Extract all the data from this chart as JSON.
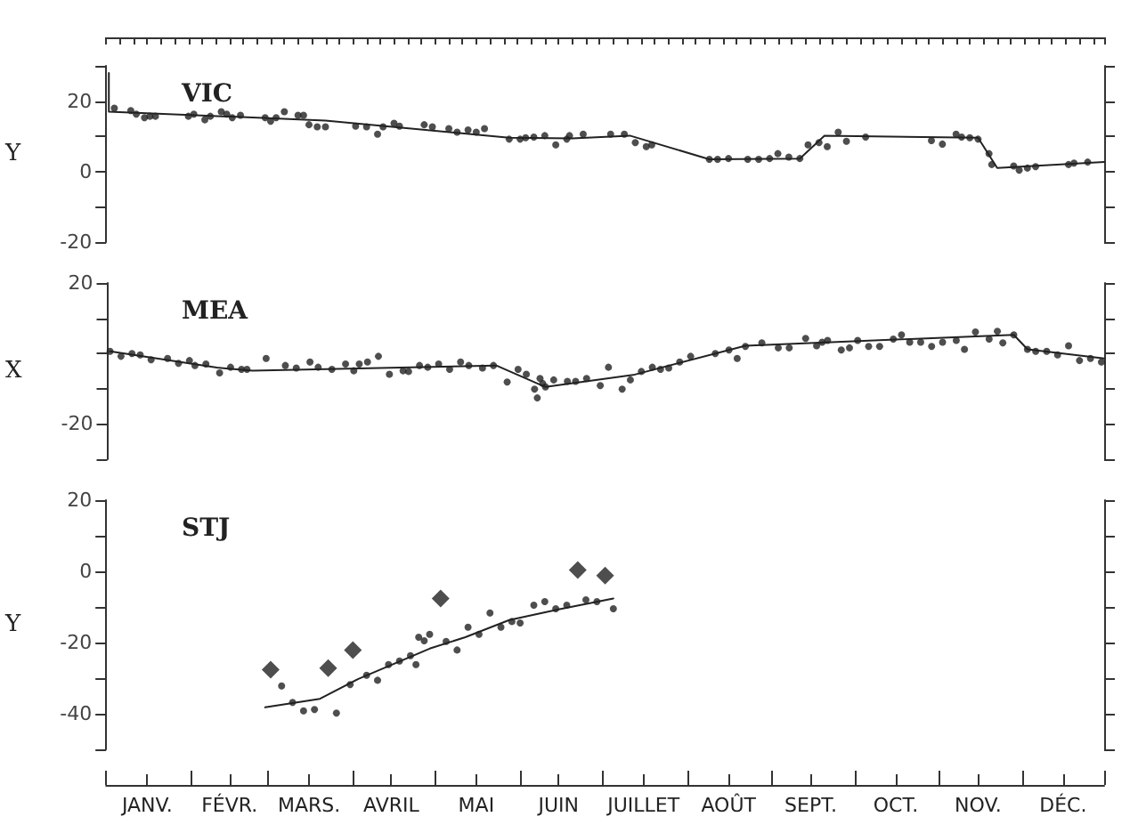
{
  "chart_data": [
    {
      "type": "scatter",
      "title": "VIC",
      "ylabel": "Y",
      "xlim": [
        "--01-01",
        "--12-31"
      ],
      "ylim": [
        -20,
        30
      ],
      "yticks": [
        -20,
        {
          "value": -10,
          "label": null
        },
        0,
        {
          "value": 10,
          "label": null
        },
        20,
        {
          "value": 30,
          "label": null
        }
      ],
      "tick_labels": "y",
      "series": [
        {
          "marker": "circle",
          "color": "#222222",
          "x": [
            "--01-04",
            "--01-10",
            "--01-12",
            "--01-15",
            "--01-17",
            "--01-19",
            "--01-31",
            "--02-02",
            "--02-06",
            "--02-08",
            "--02-12",
            "--02-14",
            "--02-16",
            "--02-19",
            "--02-28",
            "--03-02",
            "--03-04",
            "--03-07",
            "--03-12",
            "--03-14",
            "--03-16",
            "--03-19",
            "--03-22",
            "--04-02",
            "--04-06",
            "--04-10",
            "--04-12",
            "--04-16",
            "--04-18",
            "--04-27",
            "--04-30",
            "--05-06",
            "--05-09",
            "--05-13",
            "--05-16",
            "--05-19",
            "--05-28",
            "--06-01",
            "--06-03",
            "--06-06",
            "--06-10",
            "--06-14",
            "--06-18",
            "--06-19",
            "--06-24",
            "--07-04",
            "--07-09",
            "--07-13",
            "--07-17",
            "--07-19",
            "--08-09",
            "--08-12",
            "--08-16",
            "--08-23",
            "--08-27",
            "--08-31",
            "--09-03",
            "--09-07",
            "--09-11",
            "--09-14",
            "--09-18",
            "--09-21",
            "--09-25",
            "--09-28",
            "--10-05",
            "--10-29",
            "--11-02",
            "--11-07",
            "--11-09",
            "--11-12",
            "--11-15",
            "--11-19",
            "--11-20",
            "--11-28",
            "--11-30",
            "--12-03",
            "--12-06",
            "--12-18",
            "--12-20",
            "--12-25"
          ],
          "values": [
            18,
            17.3,
            16.3,
            15.3,
            15.7,
            15.7,
            15.7,
            16.3,
            14.7,
            15.7,
            17,
            16.3,
            15.3,
            16,
            15.3,
            14.3,
            15.3,
            17,
            16,
            16,
            13.3,
            12.7,
            12.7,
            12.9,
            12.7,
            10.6,
            12.7,
            13.7,
            12.9,
            13.3,
            12.7,
            12.2,
            11.2,
            11.8,
            11.2,
            12.2,
            9.2,
            9.2,
            9.6,
            9.8,
            10.2,
            7.6,
            9.2,
            10.2,
            10.6,
            10.6,
            10.6,
            8.2,
            7.1,
            7.6,
            3.5,
            3.5,
            3.7,
            3.5,
            3.5,
            3.7,
            5.1,
            4.1,
            3.7,
            7.6,
            8.2,
            7.1,
            11.2,
            8.6,
            9.8,
            8.8,
            7.8,
            10.6,
            9.8,
            9.6,
            9.2,
            5.1,
            2,
            1.6,
            0.4,
            1,
            1.4,
            2,
            2.4,
            2.7
          ]
        },
        {
          "type": "line",
          "marker": "none",
          "color": "#222222",
          "x": [
            "--01-02",
            "--01-02",
            "--03-22",
            "--05-28",
            "--06-20",
            "--07-11",
            "--08-09",
            "--09-11",
            "--09-20",
            "--11-15",
            "--11-22",
            "--12-31"
          ],
          "values": [
            28,
            17,
            14.5,
            9.6,
            9.4,
            10.2,
            3.5,
            3.7,
            10.2,
            9.6,
            1,
            2.7
          ]
        }
      ]
    },
    {
      "type": "scatter",
      "title": "MEA",
      "ylabel": "X",
      "xlim": [
        "--01-01",
        "--12-31"
      ],
      "ylim": [
        -30,
        20
      ],
      "yticks": [
        {
          "value": -30,
          "label": null
        },
        -20,
        {
          "value": -10,
          "label": null
        },
        {
          "value": 0,
          "label": null
        },
        {
          "value": 10,
          "label": null
        },
        20
      ],
      "tick_labels": "y",
      "series": [
        {
          "marker": "circle",
          "color": "#222222",
          "x": [
            "--01-02",
            "--01-06",
            "--01-10",
            "--01-13",
            "--01-17",
            "--01-23",
            "--01-27",
            "--01-31",
            "--02-02",
            "--02-06",
            "--02-11",
            "--02-15",
            "--02-19",
            "--02-21",
            "--02-28",
            "--03-07",
            "--03-11",
            "--03-16",
            "--03-19",
            "--03-24",
            "--03-29",
            "--04-01",
            "--04-03",
            "--04-06",
            "--04-10",
            "--04-14",
            "--04-19",
            "--04-21",
            "--04-25",
            "--04-28",
            "--05-02",
            "--05-06",
            "--05-10",
            "--05-13",
            "--05-18",
            "--05-22",
            "--05-27",
            "--05-31",
            "--06-03",
            "--06-06",
            "--06-07",
            "--06-08",
            "--06-09",
            "--06-10",
            "--06-13",
            "--06-18",
            "--06-21",
            "--06-25",
            "--06-30",
            "--07-03",
            "--07-08",
            "--07-11",
            "--07-15",
            "--07-19",
            "--07-22",
            "--07-25",
            "--07-29",
            "--08-02",
            "--08-11",
            "--08-16",
            "--08-19",
            "--08-22",
            "--08-28",
            "--09-03",
            "--09-07",
            "--09-13",
            "--09-17",
            "--09-19",
            "--09-21",
            "--09-26",
            "--09-29",
            "--10-02",
            "--10-06",
            "--10-10",
            "--10-15",
            "--10-18",
            "--10-21",
            "--10-25",
            "--10-29",
            "--11-02",
            "--11-07",
            "--11-10",
            "--11-14",
            "--11-19",
            "--11-22",
            "--11-24",
            "--11-28",
            "--12-03",
            "--12-06",
            "--12-10",
            "--12-14",
            "--12-18",
            "--12-22",
            "--12-26",
            "--12-30"
          ],
          "values": [
            0.6,
            -0.8,
            0,
            -0.4,
            -1.8,
            -1.4,
            -2.8,
            -2,
            -3.4,
            -3,
            -5.5,
            -3.9,
            -4.5,
            -4.5,
            -1.4,
            -3.4,
            -4.1,
            -2.4,
            -3.9,
            -4.5,
            -3,
            -4.9,
            -3,
            -2.4,
            -0.8,
            -5.9,
            -4.9,
            -5.1,
            -3.4,
            -3.9,
            -3,
            -4.5,
            -2.4,
            -3.4,
            -4.1,
            -3.4,
            -8.1,
            -4.5,
            -5.9,
            -10.1,
            -12.6,
            -7.1,
            -8.5,
            -9.5,
            -7.5,
            -7.9,
            -7.9,
            -7.1,
            -9.1,
            -3.9,
            -10.1,
            -7.5,
            -5.1,
            -3.9,
            -4.5,
            -4.1,
            -2.4,
            -0.8,
            0,
            1,
            -1.4,
            2,
            3,
            1.6,
            1.6,
            4.3,
            2.2,
            3.2,
            3.7,
            1,
            1.6,
            3.7,
            2,
            2,
            4.1,
            5.3,
            3.2,
            3.2,
            2,
            3.2,
            3.7,
            1.2,
            6.1,
            4.1,
            6.3,
            3,
            5.3,
            1.2,
            0.6,
            0.6,
            -0.4,
            2.2,
            -2,
            -1.4,
            -2.4
          ]
        },
        {
          "type": "line",
          "marker": "none",
          "color": "#222222",
          "x": [
            "--01-02",
            "--02-10",
            "--02-23",
            "--05-23",
            "--06-10",
            "--07-12",
            "--08-22",
            "--11-28",
            "--12-03",
            "--12-31"
          ],
          "values": [
            0.6,
            -4,
            -4.9,
            -3.4,
            -9.5,
            -6.1,
            2.2,
            5.3,
            1.2,
            -1.4
          ]
        }
      ]
    },
    {
      "type": "scatter",
      "title": "STJ",
      "ylabel": "Y",
      "xlim": [
        "--01-01",
        "--12-31"
      ],
      "xticks": [
        {
          "value": "--01-16",
          "label": "JANV."
        },
        {
          "value": "--02-15",
          "label": "FÉVR."
        },
        {
          "value": "--03-16",
          "label": "MARS."
        },
        {
          "value": "--04-15",
          "label": "AVRIL"
        },
        {
          "value": "--05-16",
          "label": "MAI"
        },
        {
          "value": "--06-15",
          "label": "JUIN"
        },
        {
          "value": "--07-16",
          "label": "JUILLET"
        },
        {
          "value": "--08-16",
          "label": "AOÛT"
        },
        {
          "value": "--09-15",
          "label": "SEPT."
        },
        {
          "value": "--10-16",
          "label": "OCT."
        },
        {
          "value": "--11-15",
          "label": "NOV."
        },
        {
          "value": "--12-16",
          "label": "DÉC."
        }
      ],
      "ylim": [
        -50,
        20
      ],
      "yticks": [
        {
          "value": -50,
          "label": null
        },
        -40,
        {
          "value": -30,
          "label": null
        },
        -20,
        {
          "value": -10,
          "label": null
        },
        0,
        {
          "value": 10,
          "label": null
        },
        20
      ],
      "series": [
        {
          "marker": "circle",
          "color": "#222222",
          "x": [
            "--03-06",
            "--03-10",
            "--03-14",
            "--03-18",
            "--03-26",
            "--03-31",
            "--04-06",
            "--04-10",
            "--04-14",
            "--04-18",
            "--04-22",
            "--04-24",
            "--04-25",
            "--04-27",
            "--04-29",
            "--05-05",
            "--05-09",
            "--05-13",
            "--05-17",
            "--05-21",
            "--05-25",
            "--05-29",
            "--06-01",
            "--06-06",
            "--06-10",
            "--06-14",
            "--06-18",
            "--06-25",
            "--06-29",
            "--07-05"
          ],
          "values": [
            -32.2,
            -36.8,
            -39.2,
            -38.8,
            -39.8,
            -31.8,
            -29.2,
            -30.6,
            -26.2,
            -25.2,
            -23.7,
            -26.2,
            -18.5,
            -19.5,
            -17.7,
            -19.7,
            -22.1,
            -15.7,
            -17.7,
            -11.7,
            -15.7,
            -14.1,
            -14.5,
            -9.5,
            -8.5,
            -10.5,
            -9.5,
            -8,
            -8.5,
            -10.5
          ]
        },
        {
          "marker": "diamond",
          "color": "#222222",
          "x": [
            "--03-02",
            "--03-23",
            "--04-01",
            "--05-03",
            "--06-22",
            "--07-02"
          ],
          "values": [
            -27.6,
            -27.2,
            -22.1,
            -7.6,
            0.4,
            -1.2
          ]
        },
        {
          "type": "line",
          "marker": "none",
          "color": "#222222",
          "x": [
            "--02-28",
            "--03-20",
            "--04-03",
            "--04-29",
            "--05-12",
            "--05-28",
            "--06-15",
            "--07-05"
          ],
          "values": [
            -38.2,
            -35.8,
            -30.2,
            -21.7,
            -18.5,
            -13.7,
            -10.7,
            -7.6
          ]
        }
      ]
    }
  ]
}
